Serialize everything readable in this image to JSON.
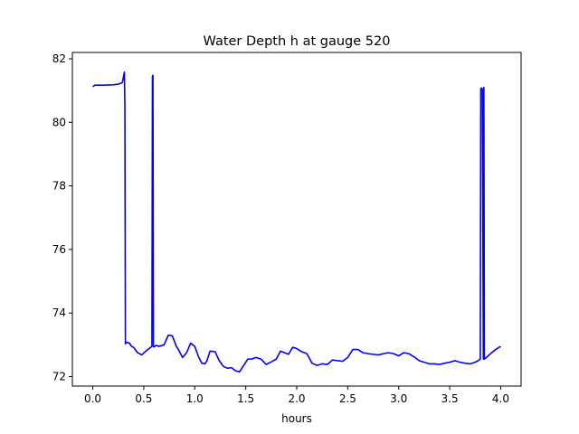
{
  "chart_data": {
    "type": "line",
    "title": "Water Depth h at gauge 520",
    "xlabel": "hours",
    "ylabel": "",
    "xlim": [
      -0.2,
      4.2
    ],
    "ylim": [
      71.7,
      82.2
    ],
    "xticks": [
      0.0,
      0.5,
      1.0,
      1.5,
      2.0,
      2.5,
      3.0,
      3.5,
      4.0
    ],
    "xtick_labels": [
      "0.0",
      "0.5",
      "1.0",
      "1.5",
      "2.0",
      "2.5",
      "3.0",
      "3.5",
      "4.0"
    ],
    "yticks": [
      72,
      74,
      76,
      78,
      80,
      82
    ],
    "ytick_labels": [
      "72",
      "74",
      "76",
      "78",
      "80",
      "82"
    ],
    "grid": false,
    "series": [
      {
        "color": "#0000ff",
        "x": [
          0.0,
          0.02,
          0.1,
          0.2,
          0.25,
          0.29,
          0.31,
          0.315,
          0.32,
          0.33,
          0.36,
          0.38,
          0.4,
          0.44,
          0.48,
          0.52,
          0.56,
          0.58,
          0.585,
          0.59,
          0.595,
          0.6,
          0.62,
          0.65,
          0.7,
          0.74,
          0.78,
          0.82,
          0.84,
          0.88,
          0.92,
          0.96,
          1.0,
          1.04,
          1.07,
          1.1,
          1.12,
          1.15,
          1.2,
          1.24,
          1.28,
          1.32,
          1.36,
          1.4,
          1.44,
          1.48,
          1.52,
          1.56,
          1.6,
          1.65,
          1.7,
          1.75,
          1.8,
          1.84,
          1.88,
          1.92,
          1.96,
          2.0,
          2.05,
          2.1,
          2.15,
          2.2,
          2.25,
          2.3,
          2.35,
          2.4,
          2.45,
          2.5,
          2.55,
          2.6,
          2.65,
          2.7,
          2.75,
          2.8,
          2.85,
          2.9,
          2.95,
          3.0,
          3.05,
          3.1,
          3.15,
          3.2,
          3.25,
          3.3,
          3.35,
          3.4,
          3.45,
          3.5,
          3.55,
          3.6,
          3.65,
          3.7,
          3.75,
          3.78,
          3.8,
          3.805,
          3.81,
          3.82,
          3.83,
          3.835,
          3.84,
          3.86,
          3.9,
          3.95,
          4.0
        ],
        "y": [
          81.12,
          81.17,
          81.17,
          81.18,
          81.2,
          81.25,
          81.58,
          80.5,
          73.03,
          73.08,
          73.05,
          72.95,
          72.92,
          72.75,
          72.68,
          72.8,
          72.9,
          72.95,
          81.45,
          81.48,
          72.95,
          72.93,
          72.98,
          72.95,
          73.0,
          73.3,
          73.28,
          72.95,
          72.85,
          72.6,
          72.75,
          73.05,
          72.95,
          72.6,
          72.42,
          72.4,
          72.5,
          72.8,
          72.78,
          72.5,
          72.32,
          72.26,
          72.28,
          72.18,
          72.15,
          72.35,
          72.55,
          72.55,
          72.6,
          72.55,
          72.38,
          72.46,
          72.55,
          72.8,
          72.75,
          72.7,
          72.92,
          72.88,
          72.78,
          72.72,
          72.42,
          72.35,
          72.4,
          72.38,
          72.52,
          72.5,
          72.48,
          72.6,
          72.85,
          72.85,
          72.75,
          72.72,
          72.7,
          72.68,
          72.72,
          72.75,
          72.72,
          72.65,
          72.75,
          72.72,
          72.62,
          72.5,
          72.45,
          72.4,
          72.4,
          72.38,
          72.42,
          72.45,
          72.5,
          72.45,
          72.42,
          72.4,
          72.45,
          72.5,
          72.55,
          81.05,
          81.08,
          81.05,
          72.55,
          81.1,
          72.55,
          72.6,
          72.72,
          72.85,
          72.95
        ]
      }
    ]
  }
}
